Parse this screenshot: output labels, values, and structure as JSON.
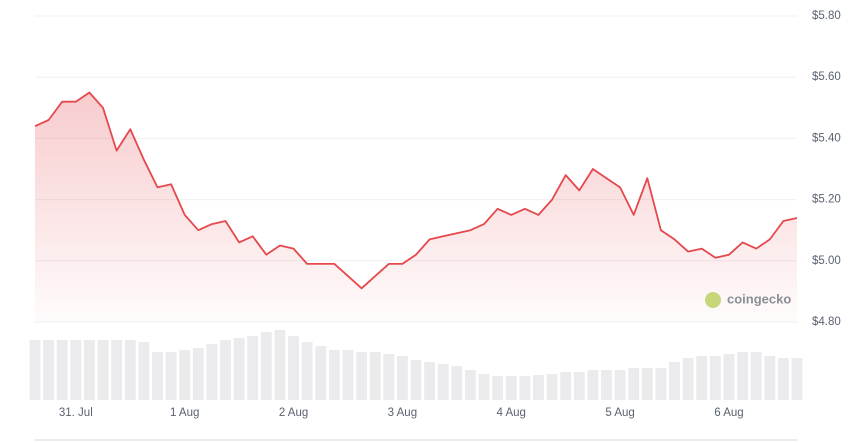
{
  "chart_data": {
    "type": "line",
    "watermark": "coingecko",
    "categories": [
      null,
      null,
      null,
      "31. Jul",
      null,
      null,
      null,
      null,
      null,
      null,
      null,
      "1 Aug",
      null,
      null,
      null,
      null,
      null,
      null,
      null,
      "2 Aug",
      null,
      null,
      null,
      null,
      null,
      null,
      null,
      "3 Aug",
      null,
      null,
      null,
      null,
      null,
      null,
      null,
      "4 Aug",
      null,
      null,
      null,
      null,
      null,
      null,
      null,
      "5 Aug",
      null,
      null,
      null,
      null,
      null,
      null,
      null,
      "6 Aug",
      null,
      null,
      null,
      null,
      null
    ],
    "series": [
      {
        "color": "#e5484d",
        "values": [
          5.44,
          5.46,
          5.52,
          5.52,
          5.55,
          5.5,
          5.36,
          5.43,
          5.33,
          5.24,
          5.25,
          5.15,
          5.1,
          5.12,
          5.13,
          5.06,
          5.08,
          5.02,
          5.05,
          5.04,
          4.99,
          4.99,
          4.99,
          4.95,
          4.91,
          4.95,
          4.99,
          4.99,
          5.02,
          5.07,
          5.08,
          5.09,
          5.1,
          5.12,
          5.17,
          5.15,
          5.17,
          5.15,
          5.2,
          5.28,
          5.23,
          5.3,
          5.27,
          5.24,
          5.15,
          5.27,
          5.1,
          5.07,
          5.03,
          5.04,
          5.01,
          5.02,
          5.06,
          5.04,
          5.07,
          5.13,
          5.14
        ]
      }
    ],
    "volumes": [
      60,
      60,
      60,
      60,
      60,
      60,
      60,
      60,
      58,
      48,
      48,
      50,
      52,
      56,
      60,
      62,
      64,
      68,
      70,
      64,
      58,
      54,
      50,
      50,
      48,
      48,
      46,
      44,
      40,
      38,
      36,
      34,
      30,
      26,
      24,
      24,
      24,
      25,
      26,
      28,
      28,
      30,
      30,
      30,
      32,
      32,
      32,
      38,
      42,
      44,
      44,
      46,
      48,
      48,
      44,
      42,
      42
    ],
    "ylim": [
      4.8,
      5.8
    ],
    "yticks": [
      {
        "value": 4.8,
        "label": "$4.80"
      },
      {
        "value": 5.0,
        "label": "$5.00"
      },
      {
        "value": 5.2,
        "label": "$5.20"
      },
      {
        "value": 5.4,
        "label": "$5.40"
      },
      {
        "value": 5.6,
        "label": "$5.60"
      },
      {
        "value": 5.8,
        "label": "$5.80"
      }
    ],
    "grid": true
  }
}
